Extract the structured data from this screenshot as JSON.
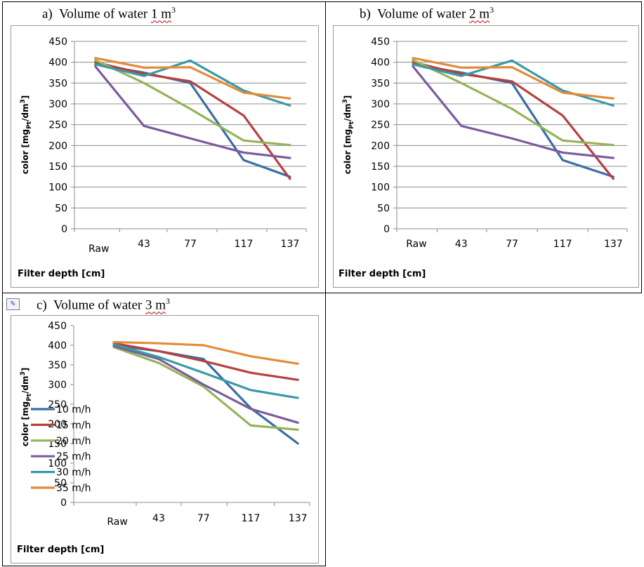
{
  "cells": [
    {
      "prefix": "a)",
      "label": "Volume of water",
      "squiggle": "1 m",
      "sup": "3"
    },
    {
      "prefix": "b)",
      "label": "Volume of water",
      "squiggle": "2 m",
      "sup": "3"
    },
    {
      "prefix": "c)",
      "label": "Volume of water",
      "squiggle": "3 m",
      "sup": "3"
    }
  ],
  "chart_data": [
    {
      "type": "line",
      "categories": [
        "Raw",
        "43",
        "77",
        "117",
        "137"
      ],
      "ylim": [
        0,
        450
      ],
      "yticks": [
        0,
        50,
        100,
        150,
        200,
        250,
        300,
        350,
        400,
        450
      ],
      "ylabel": "color  [mg",
      "ylabel_sub": "Pt",
      "ylabel_end": "/dm",
      "ylabel_sup": "3",
      "ylabel_close": "]",
      "xlabel": "Filter depth [cm]",
      "grid": true,
      "legend": "none",
      "series": [
        {
          "color": "#3a6ea5",
          "values": [
            395,
            375,
            350,
            165,
            125
          ]
        },
        {
          "color": "#b5423f",
          "values": [
            400,
            372,
            354,
            272,
            120
          ]
        },
        {
          "color": "#95b35a",
          "values": [
            405,
            350,
            288,
            212,
            201
          ]
        },
        {
          "color": "#7b5b9e",
          "values": [
            390,
            247,
            217,
            183,
            170
          ]
        },
        {
          "color": "#3a99a8",
          "values": [
            395,
            367,
            404,
            332,
            296
          ]
        },
        {
          "color": "#e38b3a",
          "values": [
            410,
            387,
            388,
            327,
            313
          ]
        }
      ]
    },
    {
      "type": "line",
      "categories": [
        "Raw",
        "43",
        "77",
        "117",
        "137"
      ],
      "ylim": [
        0,
        450
      ],
      "yticks": [
        0,
        50,
        100,
        150,
        200,
        250,
        300,
        350,
        400,
        450
      ],
      "ylabel": "color  [mg",
      "ylabel_sub": "Pt",
      "ylabel_end": "/dm",
      "ylabel_sup": "3",
      "ylabel_close": "]",
      "xlabel": "Filter depth [cm]",
      "grid": true,
      "legend": "none",
      "series": [
        {
          "color": "#3a6ea5",
          "values": [
            395,
            375,
            350,
            165,
            125
          ]
        },
        {
          "color": "#b5423f",
          "values": [
            400,
            372,
            354,
            272,
            120
          ]
        },
        {
          "color": "#95b35a",
          "values": [
            405,
            350,
            288,
            212,
            201
          ]
        },
        {
          "color": "#7b5b9e",
          "values": [
            390,
            247,
            217,
            183,
            170
          ]
        },
        {
          "color": "#3a99a8",
          "values": [
            395,
            367,
            404,
            332,
            296
          ]
        },
        {
          "color": "#e38b3a",
          "values": [
            410,
            387,
            388,
            327,
            313
          ]
        }
      ]
    },
    {
      "type": "line",
      "categories": [
        "Raw",
        "43",
        "77",
        "117",
        "137"
      ],
      "ylim": [
        0,
        450
      ],
      "yticks": [
        0,
        50,
        100,
        150,
        200,
        250,
        300,
        350,
        400,
        450
      ],
      "ylabel": "color [mg",
      "ylabel_sub": "Pt",
      "ylabel_end": "/dm",
      "ylabel_sup": "3",
      "ylabel_close": "]",
      "xlabel": "Filter depth [cm]",
      "grid": false,
      "legend": "left",
      "series": [
        {
          "name": "10 m/h",
          "color": "#3a6ea5",
          "values": [
            400,
            385,
            365,
            240,
            150
          ]
        },
        {
          "name": "15 m/h",
          "color": "#b5423f",
          "values": [
            405,
            385,
            360,
            330,
            312
          ]
        },
        {
          "name": "20 m/h",
          "color": "#95b35a",
          "values": [
            395,
            355,
            295,
            196,
            185
          ]
        },
        {
          "name": "25 m/h",
          "color": "#7b5b9e",
          "values": [
            398,
            365,
            300,
            238,
            203
          ]
        },
        {
          "name": "30 m/h",
          "color": "#3a99a8",
          "values": [
            402,
            370,
            330,
            286,
            266
          ]
        },
        {
          "name": "35 m/h",
          "color": "#e38b3a",
          "values": [
            408,
            405,
            400,
            372,
            353
          ]
        }
      ]
    }
  ]
}
